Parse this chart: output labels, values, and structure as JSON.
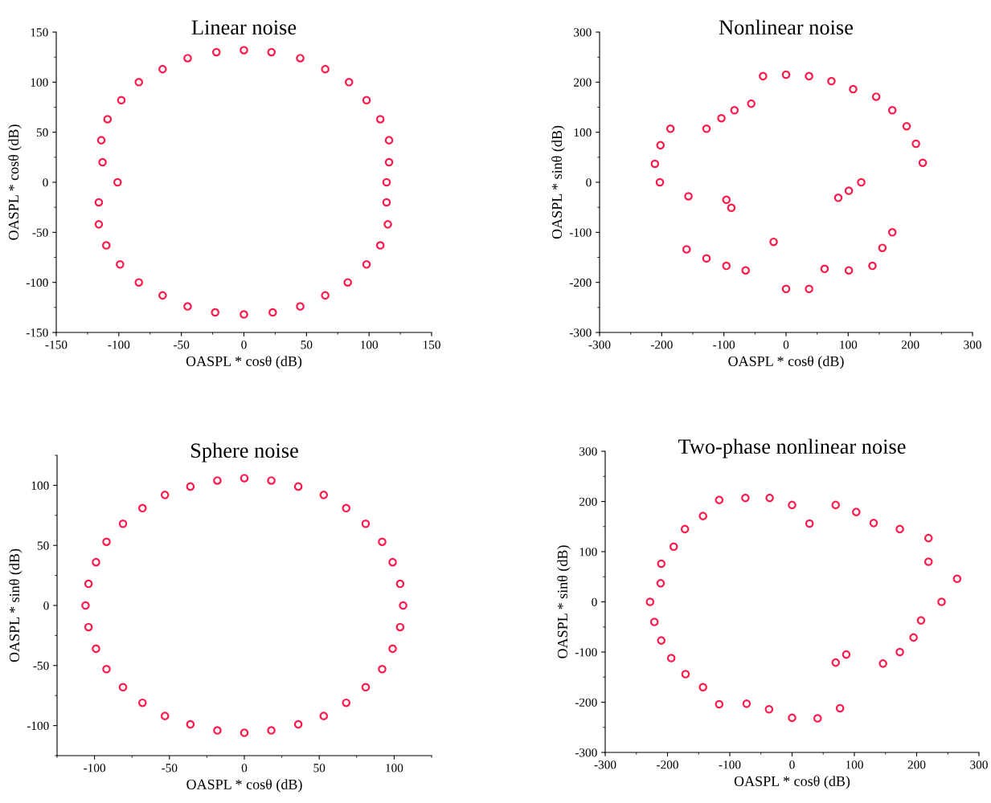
{
  "chart_data": [
    {
      "type": "scatter",
      "title": "Linear noise",
      "xlabel": "OASPL * cosθ (dB)",
      "ylabel": "OASPL * cosθ (dB)",
      "marker": "circle",
      "xlim": [
        -150,
        150
      ],
      "ylim": [
        -150,
        150
      ],
      "xticks": [
        -150,
        -100,
        -50,
        0,
        50,
        100,
        150
      ],
      "yticks": [
        -150,
        -100,
        -50,
        0,
        50,
        100,
        150
      ],
      "series": [
        {
          "color": "#ff1a4b",
          "x": [
            0,
            22,
            45,
            65,
            84,
            98,
            109,
            116,
            116,
            114,
            114,
            115,
            109,
            98,
            83,
            65,
            45,
            23,
            0,
            -23,
            -45,
            -65,
            -84,
            -99,
            -110,
            -116,
            -116,
            -101,
            -113,
            -114,
            -109,
            -98,
            -84,
            -65,
            -45,
            -22
          ],
          "values": [
            132,
            130,
            124,
            113,
            100,
            82,
            63,
            42,
            20,
            0,
            -20,
            -42,
            -63,
            -82,
            -100,
            -113,
            -124,
            -130,
            -132,
            -130,
            -124,
            -113,
            -100,
            -82,
            -63,
            -42,
            -20,
            0,
            20,
            42,
            63,
            82,
            100,
            113,
            124,
            130
          ]
        }
      ]
    },
    {
      "type": "scatter",
      "title": "Nonlinear noise",
      "xlabel": "OASPL * cosθ (dB)",
      "ylabel": "OASPL * sinθ (dB)",
      "marker": "circle",
      "xlim": [
        -300,
        300
      ],
      "ylim": [
        -300,
        300
      ],
      "xticks": [
        -300,
        -200,
        -100,
        0,
        100,
        200,
        300
      ],
      "yticks": [
        -300,
        -200,
        -100,
        0,
        100,
        200,
        300
      ],
      "series": [
        {
          "color": "#ff1a4b",
          "x": [
            0,
            37,
            73,
            108,
            145,
            171,
            194,
            209,
            220,
            121,
            101,
            84,
            171,
            155,
            139,
            101,
            62,
            37,
            0,
            -20,
            -65,
            -96,
            -128,
            -160,
            -88,
            -96,
            -157,
            -203,
            -211,
            -202,
            -186,
            -128,
            -104,
            -83,
            -56,
            -37
          ],
          "values": [
            215,
            212,
            202,
            186,
            171,
            144,
            112,
            77,
            39,
            0,
            -17,
            -31,
            -100,
            -131,
            -167,
            -176,
            -173,
            -213,
            -213,
            -119,
            -176,
            -167,
            -152,
            -134,
            -51,
            -35,
            -28,
            0,
            37,
            74,
            107,
            107,
            128,
            144,
            157,
            212
          ]
        }
      ]
    },
    {
      "type": "scatter",
      "title": "Sphere noise",
      "xlabel": "OASPL * cosθ (dB)",
      "ylabel": "OASPL * sinθ (dB)",
      "marker": "circle",
      "xlim": [
        -125,
        125
      ],
      "ylim": [
        -125,
        125
      ],
      "xticks": [
        -100,
        -50,
        0,
        50,
        100
      ],
      "yticks": [
        -100,
        -50,
        0,
        50,
        100
      ],
      "series": [
        {
          "color": "#ff1a4b",
          "x": [
            0,
            18,
            36,
            53,
            68,
            81,
            92,
            99,
            104,
            106,
            104,
            99,
            92,
            81,
            68,
            53,
            36,
            18,
            0,
            -18,
            -36,
            -53,
            -68,
            -81,
            -92,
            -99,
            -104,
            -106,
            -104,
            -99,
            -92,
            -81,
            -68,
            -53,
            -36,
            -18
          ],
          "values": [
            106,
            104,
            99,
            92,
            81,
            68,
            53,
            36,
            18,
            0,
            -18,
            -36,
            -53,
            -68,
            -81,
            -92,
            -99,
            -104,
            -106,
            -104,
            -99,
            -92,
            -81,
            -68,
            -53,
            -36,
            -18,
            0,
            18,
            36,
            53,
            68,
            81,
            92,
            99,
            104
          ]
        }
      ]
    },
    {
      "type": "scatter",
      "title": "Two-phase nonlinear noise",
      "xlabel": "OASPL * cosθ (dB)",
      "ylabel": "OASPL * sinθ (dB)",
      "marker": "circle",
      "xlim": [
        -300,
        300
      ],
      "ylim": [
        -300,
        300
      ],
      "xticks": [
        -300,
        -200,
        -100,
        0,
        100,
        200,
        300
      ],
      "yticks": [
        -300,
        -200,
        -100,
        0,
        100,
        200,
        300
      ],
      "series": [
        {
          "color": "#ff1a4b",
          "x": [
            -75,
            -36,
            0,
            28,
            70,
            103,
            131,
            173,
            219,
            219,
            265,
            240,
            207,
            195,
            173,
            146,
            87,
            70,
            77,
            41,
            0,
            -37,
            -73,
            -117,
            -143,
            -171,
            -194,
            -210,
            -221,
            -228,
            -211,
            -210,
            -190,
            -172,
            -143,
            -117
          ],
          "values": [
            207,
            207,
            193,
            156,
            193,
            179,
            157,
            145,
            127,
            80,
            46,
            0,
            -37,
            -71,
            -100,
            -123,
            -105,
            -121,
            -212,
            -232,
            -231,
            -214,
            -203,
            -204,
            -170,
            -144,
            -112,
            -77,
            -40,
            0,
            37,
            76,
            110,
            145,
            171,
            203
          ]
        }
      ]
    }
  ]
}
